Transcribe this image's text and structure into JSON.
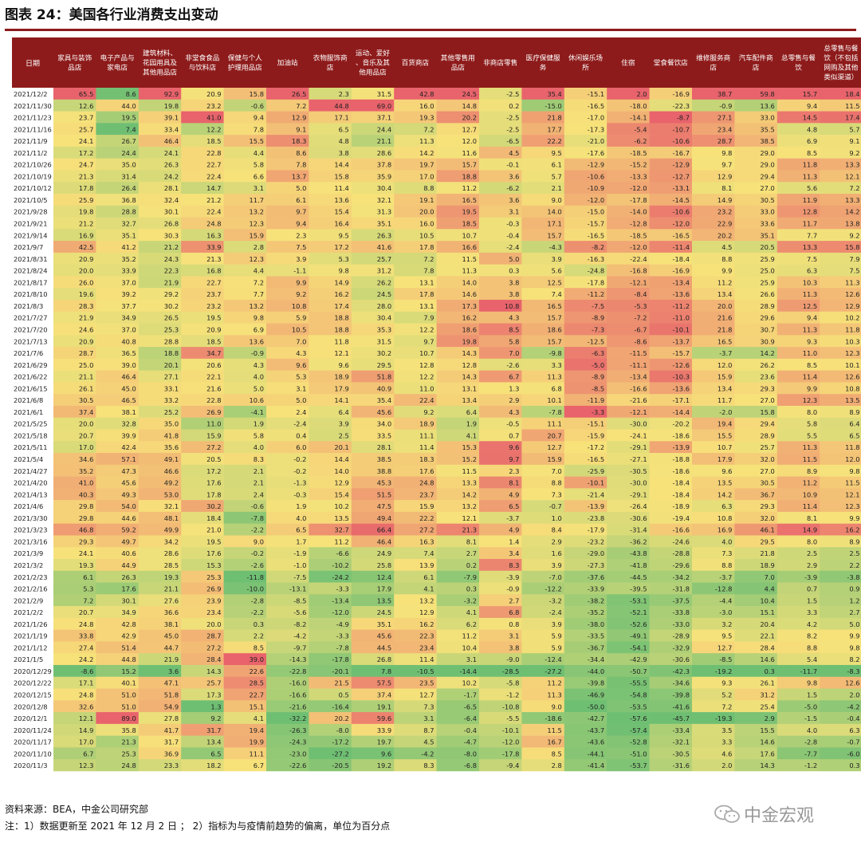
{
  "title": "图表 24：美国各行业消费支出变动",
  "source": "资料来源：BEA，中金公司研究部",
  "note": "注：1）数据更新至 2021 年 12 月 2 日 ； 2）指标为与疫情前趋势的偏离，单位为百分点",
  "logo_text": "中金宏观",
  "logo_icon": "wechat-icon",
  "colors": {
    "header_bg": "#8e1b1b",
    "header_text": "#ffffff",
    "low": "#6fbf73",
    "mid": "#f7e27a",
    "high": "#e8636b"
  },
  "chart_data": {
    "type": "heatmap",
    "row_header": "日期",
    "columns": [
      [
        "家具与装饰",
        "品店"
      ],
      [
        "电子产品与",
        "家电店"
      ],
      [
        "建筑材料、",
        "花园用具及",
        "其他用品店"
      ],
      [
        "非堂食食品",
        "与饮料店"
      ],
      [
        "保健与个人",
        "护理用品店"
      ],
      [
        "加油站"
      ],
      [
        "衣物服饰商",
        "店"
      ],
      [
        "运动、爱好",
        "、音乐及其",
        "他用品店"
      ],
      [
        "百货商店"
      ],
      [
        "其他零售用",
        "品店"
      ],
      [
        "非商店零售"
      ],
      [
        "医疗保健服",
        "务"
      ],
      [
        "休闲娱乐场",
        "所"
      ],
      [
        "住宿"
      ],
      [
        "堂食餐饮店"
      ],
      [
        "维修服务商",
        "店"
      ],
      [
        "汽车配件商",
        "店"
      ],
      [
        "总零售与餐",
        "饮"
      ],
      [
        "总零售与餐",
        "饮（不包括",
        "网购及其他",
        "类似渠道）"
      ]
    ],
    "rows": [
      [
        "2021/12/2",
        65.5,
        8.6,
        92.9,
        20.9,
        15.8,
        26.5,
        2.3,
        31.5,
        42.8,
        24.5,
        -2.5,
        35.4,
        -15.1,
        2.0,
        -16.9,
        38.7,
        59.8,
        15.7,
        18.4
      ],
      [
        "2021/11/30",
        12.6,
        44.0,
        19.8,
        23.2,
        -0.6,
        7.2,
        44.8,
        69.0,
        16.0,
        14.8,
        0.2,
        -15.0,
        -16.5,
        -18.0,
        -22.3,
        -0.9,
        13.6,
        9.4,
        11.5
      ],
      [
        "2021/11/23",
        23.7,
        19.5,
        39.1,
        41.0,
        9.4,
        12.9,
        17.1,
        37.1,
        19.3,
        20.2,
        -2.5,
        21.8,
        -17.0,
        -14.1,
        -8.7,
        27.1,
        33.0,
        14.5,
        17.4
      ],
      [
        "2021/11/16",
        25.7,
        7.4,
        33.4,
        12.2,
        7.8,
        9.1,
        6.5,
        24.4,
        7.2,
        12.7,
        -2.5,
        17.7,
        -17.3,
        -5.4,
        -10.7,
        23.4,
        35.5,
        4.8,
        5.7
      ],
      [
        "2021/11/9",
        24.1,
        26.7,
        46.4,
        18.5,
        15.5,
        18.3,
        4.8,
        21.1,
        11.3,
        12.0,
        -6.5,
        22.2,
        -21.0,
        -6.2,
        -10.6,
        28.7,
        38.5,
        6.9,
        9.1
      ],
      [
        "2021/11/2",
        17.2,
        24.4,
        24.1,
        22.8,
        4.4,
        8.6,
        3.8,
        28.6,
        14.2,
        11.6,
        4.5,
        9.5,
        -17.6,
        -18.5,
        -16.7,
        9.8,
        29.0,
        8.5,
        9.2
      ],
      [
        "2021/10/26",
        24.7,
        35.0,
        26.3,
        22.7,
        5.8,
        7.8,
        14.4,
        37.8,
        19.7,
        15.7,
        -0.1,
        6.1,
        -12.9,
        -15.2,
        -12.9,
        9.7,
        29.0,
        11.8,
        13.3
      ],
      [
        "2021/10/19",
        21.3,
        31.4,
        24.2,
        22.4,
        6.6,
        13.7,
        15.8,
        35.9,
        17.0,
        18.8,
        3.6,
        5.7,
        -10.6,
        -13.3,
        -12.7,
        12.9,
        29.4,
        11.3,
        12.1
      ],
      [
        "2021/10/12",
        17.8,
        26.4,
        28.1,
        14.7,
        3.1,
        5.0,
        11.4,
        30.4,
        8.8,
        11.2,
        -6.2,
        2.1,
        -10.9,
        -12.0,
        -13.1,
        8.1,
        27.0,
        5.6,
        7.2
      ],
      [
        "2021/10/5",
        25.9,
        36.8,
        32.4,
        21.2,
        11.7,
        6.1,
        13.6,
        32.1,
        19.1,
        16.5,
        3.6,
        9.0,
        -12.0,
        -17.8,
        -14.5,
        14.9,
        30.5,
        11.9,
        13.3
      ],
      [
        "2021/9/28",
        19.8,
        28.8,
        30.1,
        22.4,
        13.2,
        9.7,
        15.4,
        31.3,
        20.0,
        19.5,
        3.1,
        14.0,
        -15.0,
        -14.0,
        -10.6,
        23.2,
        33.0,
        12.8,
        14.2
      ],
      [
        "2021/9/21",
        21.2,
        32.7,
        26.8,
        24.8,
        12.3,
        9.4,
        16.4,
        35.1,
        16.0,
        18.5,
        -0.3,
        17.1,
        -15.7,
        -12.8,
        -12.0,
        22.9,
        33.6,
        11.7,
        13.8
      ],
      [
        "2021/9/14",
        16.9,
        35.1,
        30.3,
        16.3,
        15.9,
        2.3,
        9.5,
        26.3,
        10.5,
        10.7,
        -0.4,
        15.7,
        -16.5,
        -18.5,
        -16.5,
        20.2,
        35.1,
        7.7,
        9.2
      ],
      [
        "2021/9/7",
        42.5,
        41.2,
        21.2,
        33.9,
        2.8,
        7.5,
        17.2,
        41.6,
        17.8,
        16.6,
        -2.4,
        -4.3,
        -8.2,
        -12.0,
        -11.4,
        4.5,
        20.5,
        13.3,
        15.8
      ],
      [
        "2021/8/31",
        20.9,
        35.2,
        24.3,
        21.3,
        12.3,
        3.9,
        5.3,
        25.7,
        7.2,
        11.5,
        5.0,
        3.9,
        -16.3,
        -22.4,
        -18.4,
        8.8,
        25.9,
        7.5,
        7.9
      ],
      [
        "2021/8/24",
        20.0,
        33.9,
        22.3,
        16.8,
        4.4,
        -1.1,
        9.8,
        31.2,
        7.8,
        11.3,
        0.3,
        5.6,
        -24.8,
        -16.8,
        -16.9,
        9.9,
        25.0,
        6.3,
        7.5
      ],
      [
        "2021/8/17",
        26.0,
        37.0,
        21.9,
        22.7,
        7.2,
        9.9,
        14.9,
        26.2,
        13.1,
        14.0,
        3.8,
        12.5,
        -17.8,
        -12.1,
        -13.4,
        11.2,
        25.9,
        10.3,
        11.3
      ],
      [
        "2021/8/10",
        19.6,
        39.2,
        29.2,
        23.7,
        7.7,
        9.2,
        16.2,
        24.5,
        17.8,
        14.6,
        3.8,
        7.4,
        -11.2,
        -8.4,
        -13.6,
        13.4,
        26.6,
        11.3,
        12.6
      ],
      [
        "2021/8/3",
        28.3,
        37.7,
        30.2,
        23.2,
        13.2,
        10.8,
        17.4,
        28.0,
        13.1,
        17.3,
        10.8,
        16.5,
        -7.5,
        -5.3,
        -11.2,
        20.0,
        28.9,
        12.5,
        12.9
      ],
      [
        "2021/7/27",
        21.9,
        34.9,
        26.5,
        19.5,
        9.8,
        5.9,
        18.8,
        30.4,
        7.9,
        16.2,
        4.3,
        15.7,
        -8.9,
        -7.2,
        -11.0,
        21.6,
        29.6,
        9.4,
        10.2
      ],
      [
        "2021/7/20",
        24.6,
        37.0,
        25.3,
        20.9,
        6.9,
        10.5,
        18.8,
        35.3,
        12.2,
        18.6,
        8.5,
        18.6,
        -7.3,
        -6.7,
        -10.1,
        21.8,
        30.7,
        11.3,
        11.8
      ],
      [
        "2021/7/13",
        20.9,
        40.8,
        28.8,
        18.5,
        13.6,
        7.0,
        11.8,
        31.5,
        9.7,
        19.8,
        5.8,
        15.7,
        -12.5,
        -8.6,
        -13.7,
        16.5,
        30.9,
        9.3,
        10.3
      ],
      [
        "2021/7/6",
        28.7,
        36.5,
        18.8,
        34.7,
        -0.9,
        4.3,
        12.1,
        30.2,
        10.7,
        14.3,
        7.0,
        -9.8,
        -6.3,
        -11.5,
        -15.7,
        -3.7,
        14.2,
        11.0,
        12.3
      ],
      [
        "2021/6/29",
        25.0,
        39.0,
        20.1,
        20.6,
        4.3,
        9.6,
        9.6,
        29.5,
        12.8,
        12.8,
        -2.6,
        3.3,
        -5.0,
        -11.1,
        -12.6,
        12.0,
        26.2,
        8.5,
        10.1
      ],
      [
        "2021/6/22",
        21.1,
        46.4,
        27.1,
        22.1,
        4.0,
        5.3,
        18.9,
        51.8,
        12.2,
        14.3,
        6.7,
        11.3,
        -8.9,
        -13.4,
        -10.3,
        15.9,
        23.6,
        11.4,
        12.6
      ],
      [
        "2021/6/15",
        26.1,
        45.0,
        33.1,
        21.6,
        5.0,
        3.1,
        17.9,
        40.9,
        11.0,
        13.1,
        1.3,
        6.8,
        -8.5,
        -16.6,
        -13.6,
        13.4,
        29.3,
        9.9,
        10.8
      ],
      [
        "2021/6/8",
        30.5,
        46.5,
        33.2,
        22.8,
        10.6,
        5.0,
        14.1,
        35.4,
        22.4,
        13.4,
        2.9,
        10.1,
        -11.9,
        -21.6,
        -17.1,
        11.7,
        27.0,
        12.3,
        13.5
      ],
      [
        "2021/6/1",
        37.4,
        38.1,
        25.2,
        26.9,
        -4.1,
        2.4,
        6.4,
        45.6,
        9.2,
        6.4,
        4.3,
        -7.8,
        -3.3,
        -12.1,
        -14.4,
        -2.0,
        15.8,
        8.0,
        8.9
      ],
      [
        "2021/5/25",
        20.0,
        32.8,
        35.0,
        11.0,
        1.9,
        -2.4,
        3.9,
        34.0,
        18.9,
        1.9,
        -0.5,
        11.1,
        -15.1,
        -30.0,
        -20.2,
        19.4,
        29.4,
        5.8,
        6.4
      ],
      [
        "2021/5/18",
        20.7,
        39.9,
        41.8,
        15.9,
        5.8,
        0.4,
        2.5,
        33.5,
        11.1,
        4.1,
        0.7,
        20.7,
        -15.9,
        -24.1,
        -18.6,
        15.5,
        28.9,
        5.5,
        6.5
      ],
      [
        "2021/5/11",
        17.0,
        42.4,
        35.6,
        27.2,
        4.0,
        6.0,
        20.1,
        28.1,
        11.4,
        15.3,
        9.6,
        12.7,
        -17.2,
        -29.1,
        -13.9,
        10.7,
        25.7,
        11.3,
        11.8
      ],
      [
        "2021/5/4",
        34.6,
        57.1,
        49.1,
        20.5,
        8.3,
        -0.2,
        14.4,
        38.5,
        18.3,
        15.2,
        9.7,
        15.9,
        -16.5,
        -27.1,
        -18.8,
        17.9,
        32.0,
        11.5,
        12.0
      ],
      [
        "2021/4/27",
        35.2,
        47.3,
        46.6,
        17.2,
        2.1,
        -0.2,
        14.0,
        38.8,
        17.6,
        11.5,
        2.3,
        7.0,
        -25.9,
        -30.5,
        -18.6,
        9.6,
        27.0,
        8.9,
        9.8
      ],
      [
        "2021/4/20",
        41.0,
        45.6,
        49.2,
        17.6,
        2.1,
        -1.3,
        12.9,
        45.3,
        24.8,
        13.3,
        8.1,
        8.8,
        -10.1,
        -30.0,
        -18.4,
        13.5,
        30.5,
        11.2,
        11.5
      ],
      [
        "2021/4/13",
        40.3,
        49.3,
        53.0,
        17.8,
        2.4,
        -0.3,
        15.4,
        51.5,
        23.7,
        14.2,
        4.9,
        7.3,
        -21.4,
        -29.1,
        -18.4,
        14.2,
        36.7,
        10.9,
        12.1
      ],
      [
        "2021/4/6",
        29.8,
        54.0,
        32.1,
        30.2,
        -0.6,
        1.9,
        10.2,
        47.5,
        15.9,
        13.2,
        6.5,
        -0.7,
        -13.9,
        -26.4,
        -18.9,
        6.3,
        29.3,
        11.4,
        12.3
      ],
      [
        "2021/3/30",
        29.8,
        44.6,
        48.1,
        18.4,
        -7.8,
        4.0,
        13.5,
        49.4,
        22.2,
        12.1,
        -3.7,
        1.0,
        -23.8,
        -30.6,
        -19.4,
        10.8,
        32.0,
        8.1,
        9.9
      ],
      [
        "2021/3/23",
        46.8,
        59.2,
        49.9,
        21.0,
        -2.2,
        6.5,
        32.7,
        66.4,
        27.2,
        21.3,
        4.9,
        8.4,
        -17.9,
        -31.4,
        -16.6,
        16.9,
        46.1,
        14.9,
        16.2
      ],
      [
        "2021/3/16",
        29.3,
        49.7,
        34.2,
        19.5,
        9.0,
        1.7,
        11.2,
        46.4,
        16.3,
        8.1,
        1.4,
        2.9,
        -23.2,
        -36.2,
        -24.6,
        4.0,
        29.5,
        8.0,
        8.9
      ],
      [
        "2021/3/9",
        24.1,
        40.6,
        28.6,
        17.6,
        -0.2,
        -1.9,
        -6.6,
        24.9,
        7.4,
        2.7,
        3.4,
        1.6,
        -29.0,
        -43.8,
        -28.8,
        7.3,
        21.8,
        2.5,
        2.5
      ],
      [
        "2021/3/2",
        19.3,
        44.9,
        28.5,
        15.3,
        -2.6,
        -1.0,
        -10.2,
        25.8,
        13.9,
        0.2,
        8.3,
        3.9,
        -27.3,
        -41.8,
        -29.6,
        8.8,
        18.9,
        2.9,
        2.2
      ],
      [
        "2021/2/23",
        6.1,
        26.3,
        19.3,
        25.3,
        -11.8,
        -7.5,
        -24.2,
        12.4,
        6.1,
        -7.9,
        -3.9,
        -7.0,
        -37.6,
        -44.5,
        -34.2,
        -3.7,
        7.0,
        -3.9,
        -3.8
      ],
      [
        "2021/2/16",
        5.3,
        17.6,
        21.1,
        26.9,
        -10.0,
        -13.1,
        -3.3,
        17.9,
        4.1,
        0.3,
        -0.9,
        -12.2,
        -33.9,
        -39.5,
        -31.8,
        -12.8,
        4.4,
        0.7,
        0.9
      ],
      [
        "2021/2/9",
        7.2,
        30.1,
        27.6,
        23.9,
        -2.8,
        -8.5,
        -13.4,
        13.5,
        13.2,
        -3.2,
        2.7,
        -3.2,
        -38.2,
        -53.1,
        -37.5,
        -4.4,
        10.4,
        1.5,
        1.2
      ],
      [
        "2021/2/2",
        20.7,
        34.9,
        36.6,
        23.4,
        -2.2,
        -5.6,
        -12.0,
        24.5,
        12.9,
        4.1,
        6.8,
        -2.4,
        -35.2,
        -52.1,
        -33.8,
        -3.0,
        15.1,
        3.3,
        2.7
      ],
      [
        "2021/1/26",
        24.8,
        42.8,
        38.1,
        20.0,
        0.3,
        -8.2,
        -4.9,
        35.1,
        16.2,
        6.2,
        0.8,
        3.9,
        -38.0,
        -52.6,
        -33.0,
        3.2,
        20.4,
        4.2,
        5.0
      ],
      [
        "2021/1/19",
        33.8,
        42.9,
        45.0,
        28.7,
        2.2,
        -4.2,
        -3.3,
        45.6,
        22.3,
        11.2,
        3.1,
        5.9,
        -33.5,
        -49.1,
        -28.9,
        9.5,
        22.1,
        8.2,
        9.9
      ],
      [
        "2021/1/12",
        27.4,
        51.4,
        44.7,
        27.2,
        8.5,
        -9.7,
        -7.8,
        44.5,
        23.4,
        10.4,
        3.8,
        5.9,
        -36.7,
        -54.1,
        -32.9,
        12.7,
        28.4,
        8.8,
        9.8
      ],
      [
        "2021/1/5",
        24.2,
        44.8,
        21.9,
        28.4,
        39.0,
        -14.3,
        -17.8,
        26.8,
        11.4,
        3.1,
        -9.0,
        -12.4,
        -34.4,
        -42.9,
        -30.6,
        -8.5,
        14.6,
        5.4,
        8.2
      ],
      [
        "2020/12/29",
        -8.6,
        15.2,
        3.6,
        14.3,
        22.6,
        -22.8,
        -20.1,
        7.8,
        -10.5,
        -14.4,
        -28.5,
        -27.2,
        -44.0,
        -50.7,
        -42.3,
        -19.2,
        0.3,
        -11.7,
        -8.3
      ],
      [
        "2020/12/22",
        17.1,
        40.1,
        47.1,
        25.7,
        28.5,
        -16.0,
        21.5,
        57.5,
        23.5,
        10.2,
        -5.8,
        11.2,
        -39.8,
        -55.5,
        -34.6,
        9.3,
        26.1,
        9.8,
        12.6
      ],
      [
        "2020/12/15",
        24.8,
        51.0,
        51.8,
        17.3,
        22.7,
        -16.6,
        0.5,
        37.4,
        12.7,
        -1.7,
        -1.2,
        11.3,
        -46.9,
        -54.8,
        -39.8,
        5.2,
        31.2,
        1.5,
        2.0
      ],
      [
        "2020/12/8",
        32.6,
        51.0,
        54.9,
        1.3,
        15.1,
        -21.6,
        -16.4,
        19.1,
        7.3,
        -6.5,
        -10.8,
        9.0,
        -50.0,
        -53.5,
        -41.6,
        7.2,
        25.4,
        -5.0,
        -4.2
      ],
      [
        "2020/12/1",
        12.1,
        89.0,
        27.8,
        9.2,
        4.1,
        -32.2,
        20.2,
        59.6,
        3.1,
        -6.4,
        -5.5,
        -18.6,
        -42.7,
        -57.6,
        -45.7,
        -19.3,
        2.9,
        -1.5,
        -0.4
      ],
      [
        "2020/11/24",
        14.9,
        35.8,
        41.7,
        31.7,
        19.4,
        -26.3,
        -8.0,
        33.9,
        8.7,
        -0.4,
        -10.1,
        11.5,
        -43.7,
        -57.4,
        -33.4,
        3.5,
        15.5,
        4.0,
        6.3
      ],
      [
        "2020/11/17",
        17.0,
        21.3,
        31.7,
        13.4,
        19.9,
        -24.3,
        -17.2,
        19.7,
        4.5,
        -4.7,
        -12.0,
        16.7,
        -43.6,
        -52.8,
        -32.1,
        3.3,
        14.6,
        -2.8,
        -0.7
      ],
      [
        "2020/11/10",
        6.7,
        25.3,
        36.9,
        6.5,
        11.1,
        -23.0,
        -27.2,
        9.6,
        -4.2,
        -8.0,
        -17.8,
        8.5,
        -44.1,
        -51.0,
        -30.5,
        4.6,
        17.6,
        -7.7,
        -6.0
      ],
      [
        "2020/11/3",
        12.3,
        24.8,
        23.3,
        18.2,
        6.7,
        -22.6,
        -20.5,
        19.2,
        8.3,
        -6.8,
        -9.4,
        2.8,
        -41.4,
        -53.7,
        -31.6,
        2.0,
        14.3,
        -1.2,
        0.3
      ]
    ]
  }
}
